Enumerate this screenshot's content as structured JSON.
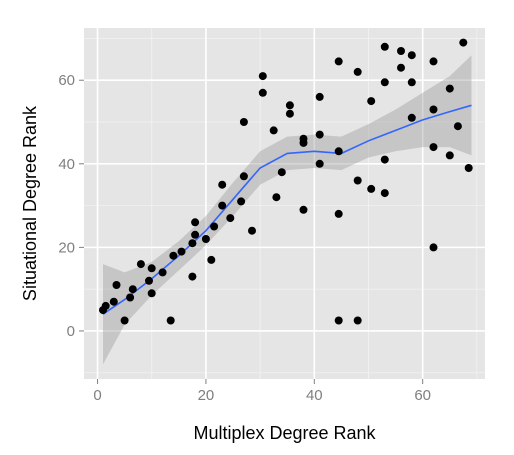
{
  "chart_data": {
    "type": "scatter",
    "title": "",
    "xlabel": "Multiplex Degree Rank",
    "ylabel": "Situational Degree Rank",
    "xlim": [
      -2.5,
      71.5
    ],
    "ylim": [
      -11.5,
      72.5
    ],
    "x_ticks": [
      0,
      20,
      40,
      60
    ],
    "y_ticks": [
      0,
      20,
      40,
      60
    ],
    "grid": true,
    "legend": "none",
    "colors": {
      "panel": "#e5e5e5",
      "grid_major": "#ffffff",
      "grid_minor": "#f2f2f2",
      "points": "#000000",
      "smooth_line": "#3366ff",
      "confidence_band": "#999999"
    },
    "points": [
      {
        "x": 1,
        "y": 5
      },
      {
        "x": 1.5,
        "y": 6
      },
      {
        "x": 3,
        "y": 7
      },
      {
        "x": 3.5,
        "y": 11
      },
      {
        "x": 5,
        "y": 2.5
      },
      {
        "x": 6,
        "y": 8
      },
      {
        "x": 6.5,
        "y": 10
      },
      {
        "x": 8,
        "y": 16
      },
      {
        "x": 9.5,
        "y": 12
      },
      {
        "x": 10,
        "y": 15
      },
      {
        "x": 10,
        "y": 9
      },
      {
        "x": 12,
        "y": 14
      },
      {
        "x": 13.5,
        "y": 2.5
      },
      {
        "x": 14,
        "y": 18
      },
      {
        "x": 15.5,
        "y": 19
      },
      {
        "x": 17.5,
        "y": 13
      },
      {
        "x": 17.5,
        "y": 21
      },
      {
        "x": 18,
        "y": 23
      },
      {
        "x": 18,
        "y": 26
      },
      {
        "x": 20,
        "y": 22
      },
      {
        "x": 21,
        "y": 17
      },
      {
        "x": 21.5,
        "y": 25
      },
      {
        "x": 23,
        "y": 35
      },
      {
        "x": 23,
        "y": 30
      },
      {
        "x": 24.5,
        "y": 27
      },
      {
        "x": 26.5,
        "y": 31
      },
      {
        "x": 27,
        "y": 37
      },
      {
        "x": 27,
        "y": 50
      },
      {
        "x": 28.5,
        "y": 24
      },
      {
        "x": 30.5,
        "y": 57
      },
      {
        "x": 30.5,
        "y": 61
      },
      {
        "x": 32.5,
        "y": 48
      },
      {
        "x": 33,
        "y": 32
      },
      {
        "x": 34,
        "y": 38
      },
      {
        "x": 35.5,
        "y": 52
      },
      {
        "x": 35.5,
        "y": 54
      },
      {
        "x": 38,
        "y": 45
      },
      {
        "x": 38,
        "y": 46
      },
      {
        "x": 38,
        "y": 29
      },
      {
        "x": 41,
        "y": 56
      },
      {
        "x": 41,
        "y": 47
      },
      {
        "x": 41,
        "y": 40
      },
      {
        "x": 44.5,
        "y": 64.5
      },
      {
        "x": 44.5,
        "y": 43
      },
      {
        "x": 44.5,
        "y": 28
      },
      {
        "x": 44.5,
        "y": 2.5
      },
      {
        "x": 48,
        "y": 62
      },
      {
        "x": 48,
        "y": 36
      },
      {
        "x": 48,
        "y": 2.5
      },
      {
        "x": 50.5,
        "y": 55
      },
      {
        "x": 50.5,
        "y": 34
      },
      {
        "x": 53,
        "y": 68
      },
      {
        "x": 53,
        "y": 59.5
      },
      {
        "x": 53,
        "y": 41
      },
      {
        "x": 53,
        "y": 33
      },
      {
        "x": 56,
        "y": 67
      },
      {
        "x": 56,
        "y": 63
      },
      {
        "x": 58,
        "y": 66
      },
      {
        "x": 58,
        "y": 59.5
      },
      {
        "x": 58,
        "y": 51
      },
      {
        "x": 62,
        "y": 64.5
      },
      {
        "x": 62,
        "y": 53
      },
      {
        "x": 62,
        "y": 44
      },
      {
        "x": 62,
        "y": 20
      },
      {
        "x": 65,
        "y": 58
      },
      {
        "x": 65,
        "y": 42
      },
      {
        "x": 66.5,
        "y": 49
      },
      {
        "x": 67.5,
        "y": 69
      },
      {
        "x": 68.5,
        "y": 39
      }
    ],
    "smooth": {
      "x": [
        1,
        5,
        10,
        15,
        20,
        25,
        30,
        35,
        40,
        45,
        50,
        55,
        60,
        65,
        69
      ],
      "y": [
        4,
        7.5,
        12.5,
        18,
        24,
        31.5,
        39,
        42.5,
        43,
        42.5,
        45.5,
        48,
        50.5,
        52.5,
        54
      ],
      "lower": [
        -8,
        1.5,
        8.5,
        14.5,
        20.5,
        27.5,
        35,
        38.5,
        39,
        38.5,
        41.5,
        43,
        44,
        44,
        42
      ],
      "upper": [
        16,
        14,
        16.5,
        21.5,
        27.5,
        35.5,
        43,
        46.5,
        47,
        46.5,
        49.5,
        53,
        57,
        61,
        66
      ]
    }
  }
}
